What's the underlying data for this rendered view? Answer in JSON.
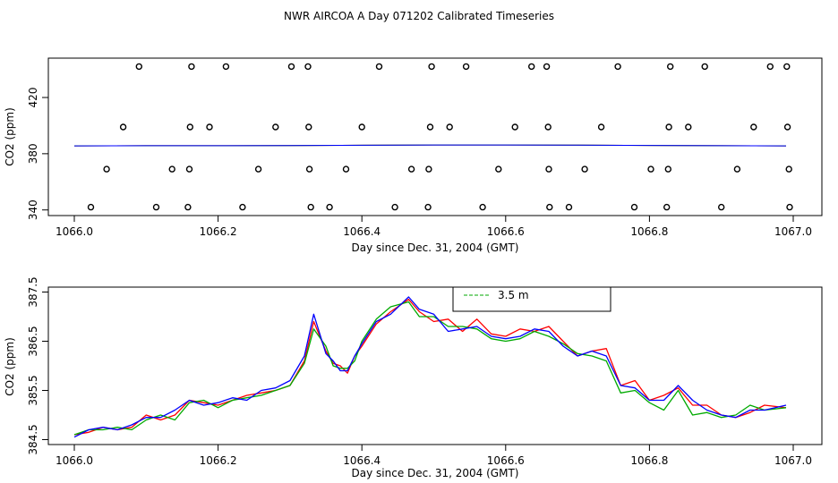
{
  "chart_data": [
    {
      "type": "scatter",
      "title": "NWR AIRCOA A  Day 071202  Calibrated Timeseries",
      "xlabel": "Day since Dec. 31, 2004 (GMT)",
      "ylabel": "CO2 (ppm)",
      "xlim": [
        1066.0,
        1067.0
      ],
      "ylim": [
        336,
        448
      ],
      "x_ticks": [
        "1066.0",
        "1066.2",
        "1066.4",
        "1066.6",
        "1066.8",
        "1067.0"
      ],
      "x_tick_values": [
        1066.0,
        1066.2,
        1066.4,
        1066.6,
        1066.8,
        1067.0
      ],
      "y_ticks": [
        "340",
        "380",
        "420"
      ],
      "y_tick_values": [
        340,
        380,
        420
      ],
      "grid": false,
      "points": [
        {
          "x": 1066.023,
          "y": 342
        },
        {
          "x": 1066.045,
          "y": 369
        },
        {
          "x": 1066.068,
          "y": 399
        },
        {
          "x": 1066.09,
          "y": 442
        },
        {
          "x": 1066.114,
          "y": 342
        },
        {
          "x": 1066.136,
          "y": 369
        },
        {
          "x": 1066.158,
          "y": 342
        },
        {
          "x": 1066.16,
          "y": 369
        },
        {
          "x": 1066.161,
          "y": 399
        },
        {
          "x": 1066.163,
          "y": 442
        },
        {
          "x": 1066.188,
          "y": 399
        },
        {
          "x": 1066.211,
          "y": 442
        },
        {
          "x": 1066.234,
          "y": 342
        },
        {
          "x": 1066.256,
          "y": 369
        },
        {
          "x": 1066.28,
          "y": 399
        },
        {
          "x": 1066.302,
          "y": 442
        },
        {
          "x": 1066.325,
          "y": 442
        },
        {
          "x": 1066.326,
          "y": 399
        },
        {
          "x": 1066.327,
          "y": 369
        },
        {
          "x": 1066.329,
          "y": 342
        },
        {
          "x": 1066.355,
          "y": 342
        },
        {
          "x": 1066.378,
          "y": 369
        },
        {
          "x": 1066.4,
          "y": 399
        },
        {
          "x": 1066.424,
          "y": 442
        },
        {
          "x": 1066.446,
          "y": 342
        },
        {
          "x": 1066.469,
          "y": 369
        },
        {
          "x": 1066.492,
          "y": 342
        },
        {
          "x": 1066.493,
          "y": 369
        },
        {
          "x": 1066.495,
          "y": 399
        },
        {
          "x": 1066.497,
          "y": 442
        },
        {
          "x": 1066.522,
          "y": 399
        },
        {
          "x": 1066.545,
          "y": 442
        },
        {
          "x": 1066.568,
          "y": 342
        },
        {
          "x": 1066.59,
          "y": 369
        },
        {
          "x": 1066.613,
          "y": 399
        },
        {
          "x": 1066.636,
          "y": 442
        },
        {
          "x": 1066.657,
          "y": 442
        },
        {
          "x": 1066.659,
          "y": 399
        },
        {
          "x": 1066.66,
          "y": 369
        },
        {
          "x": 1066.661,
          "y": 342
        },
        {
          "x": 1066.688,
          "y": 342
        },
        {
          "x": 1066.71,
          "y": 369
        },
        {
          "x": 1066.733,
          "y": 399
        },
        {
          "x": 1066.756,
          "y": 442
        },
        {
          "x": 1066.779,
          "y": 342
        },
        {
          "x": 1066.802,
          "y": 369
        },
        {
          "x": 1066.824,
          "y": 342
        },
        {
          "x": 1066.826,
          "y": 369
        },
        {
          "x": 1066.827,
          "y": 399
        },
        {
          "x": 1066.829,
          "y": 442
        },
        {
          "x": 1066.854,
          "y": 399
        },
        {
          "x": 1066.877,
          "y": 442
        },
        {
          "x": 1066.9,
          "y": 342
        },
        {
          "x": 1066.922,
          "y": 369
        },
        {
          "x": 1066.945,
          "y": 399
        },
        {
          "x": 1066.968,
          "y": 442
        },
        {
          "x": 1066.991,
          "y": 442
        },
        {
          "x": 1066.992,
          "y": 399
        },
        {
          "x": 1066.994,
          "y": 369
        },
        {
          "x": 1066.995,
          "y": 342
        }
      ],
      "series": [
        {
          "color": "#ff0000",
          "x": [
            1066.0,
            1066.1,
            1066.2,
            1066.3,
            1066.4,
            1066.5,
            1066.6,
            1066.7,
            1066.8,
            1066.9,
            1066.99
          ],
          "y": [
            385.6,
            385.7,
            385.7,
            385.8,
            386.0,
            386.2,
            386.2,
            386.1,
            385.9,
            385.7,
            385.6
          ]
        },
        {
          "color": "#00aa00",
          "x": [
            1066.0,
            1066.1,
            1066.2,
            1066.3,
            1066.4,
            1066.5,
            1066.6,
            1066.7,
            1066.8,
            1066.9,
            1066.99
          ],
          "y": [
            385.6,
            385.7,
            385.7,
            385.8,
            386.0,
            386.2,
            386.2,
            386.1,
            385.9,
            385.7,
            385.6
          ]
        },
        {
          "color": "#0000ff",
          "x": [
            1066.0,
            1066.1,
            1066.2,
            1066.3,
            1066.4,
            1066.5,
            1066.6,
            1066.7,
            1066.8,
            1066.9,
            1066.99
          ],
          "y": [
            385.6,
            385.7,
            385.7,
            385.8,
            386.0,
            386.2,
            386.2,
            386.1,
            385.9,
            385.7,
            385.6
          ]
        }
      ]
    },
    {
      "type": "line",
      "xlabel": "Day since Dec. 31, 2004 (GMT)",
      "ylabel": "CO2 (ppm)",
      "xlim": [
        1066.0,
        1067.0
      ],
      "ylim": [
        384.4,
        387.6
      ],
      "x_ticks": [
        "1066.0",
        "1066.2",
        "1066.4",
        "1066.6",
        "1066.8",
        "1067.0"
      ],
      "x_tick_values": [
        1066.0,
        1066.2,
        1066.4,
        1066.6,
        1066.8,
        1067.0
      ],
      "y_ticks": [
        "384.5",
        "385.5",
        "386.5",
        "387.5"
      ],
      "y_tick_values": [
        384.5,
        385.5,
        386.5,
        387.5
      ],
      "grid": false,
      "legend_position": "top-center",
      "legend_entries": [
        "3.5 m"
      ],
      "series_colors": [
        "#ff0000",
        "#00aa00",
        "#0000ff"
      ],
      "x": [
        1066.0,
        1066.02,
        1066.04,
        1066.06,
        1066.08,
        1066.1,
        1066.12,
        1066.14,
        1066.16,
        1066.18,
        1066.2,
        1066.22,
        1066.24,
        1066.26,
        1066.28,
        1066.3,
        1066.32,
        1066.333,
        1066.35,
        1066.36,
        1066.37,
        1066.38,
        1066.39,
        1066.4,
        1066.42,
        1066.44,
        1066.465,
        1066.48,
        1066.5,
        1066.52,
        1066.54,
        1066.56,
        1066.58,
        1066.6,
        1066.62,
        1066.64,
        1066.66,
        1066.68,
        1066.7,
        1066.72,
        1066.74,
        1066.76,
        1066.78,
        1066.8,
        1066.82,
        1066.84,
        1066.86,
        1066.88,
        1066.9,
        1066.92,
        1066.94,
        1066.96,
        1066.99
      ],
      "series": [
        {
          "color": "#ff0000",
          "values": [
            384.6,
            384.65,
            384.75,
            384.7,
            384.75,
            385.0,
            384.9,
            385.0,
            385.3,
            385.25,
            385.2,
            385.3,
            385.4,
            385.45,
            385.5,
            385.6,
            386.1,
            386.9,
            386.3,
            386.05,
            386.0,
            385.85,
            386.2,
            386.4,
            386.85,
            387.1,
            387.35,
            387.1,
            386.9,
            386.95,
            386.7,
            386.95,
            386.65,
            386.6,
            386.75,
            386.7,
            386.8,
            386.5,
            386.2,
            386.3,
            386.35,
            385.6,
            385.7,
            385.3,
            385.4,
            385.55,
            385.2,
            385.2,
            385.0,
            384.95,
            385.05,
            385.2,
            385.15
          ]
        },
        {
          "color": "#00aa00",
          "values": [
            384.6,
            384.7,
            384.7,
            384.75,
            384.7,
            384.9,
            385.0,
            384.9,
            385.25,
            385.3,
            385.15,
            385.3,
            385.35,
            385.4,
            385.5,
            385.6,
            386.05,
            386.75,
            386.4,
            386.0,
            385.95,
            385.95,
            386.1,
            386.5,
            386.95,
            387.2,
            387.3,
            387.0,
            387.0,
            386.8,
            386.8,
            386.75,
            386.55,
            386.5,
            386.55,
            386.7,
            386.6,
            386.45,
            386.25,
            386.2,
            386.1,
            385.45,
            385.5,
            385.25,
            385.1,
            385.5,
            385.0,
            385.05,
            384.95,
            385.0,
            385.2,
            385.1,
            385.15
          ]
        },
        {
          "color": "#0000ff",
          "values": [
            384.55,
            384.7,
            384.75,
            384.7,
            384.8,
            384.95,
            384.95,
            385.1,
            385.3,
            385.2,
            385.25,
            385.35,
            385.3,
            385.5,
            385.55,
            385.7,
            386.2,
            387.05,
            386.25,
            386.1,
            385.9,
            385.9,
            386.2,
            386.45,
            386.9,
            387.05,
            387.4,
            387.15,
            387.05,
            386.7,
            386.75,
            386.8,
            386.6,
            386.55,
            386.6,
            386.75,
            386.7,
            386.4,
            386.2,
            386.3,
            386.2,
            385.6,
            385.55,
            385.3,
            385.3,
            385.6,
            385.3,
            385.1,
            385.0,
            384.95,
            385.1,
            385.1,
            385.2
          ]
        }
      ]
    }
  ]
}
